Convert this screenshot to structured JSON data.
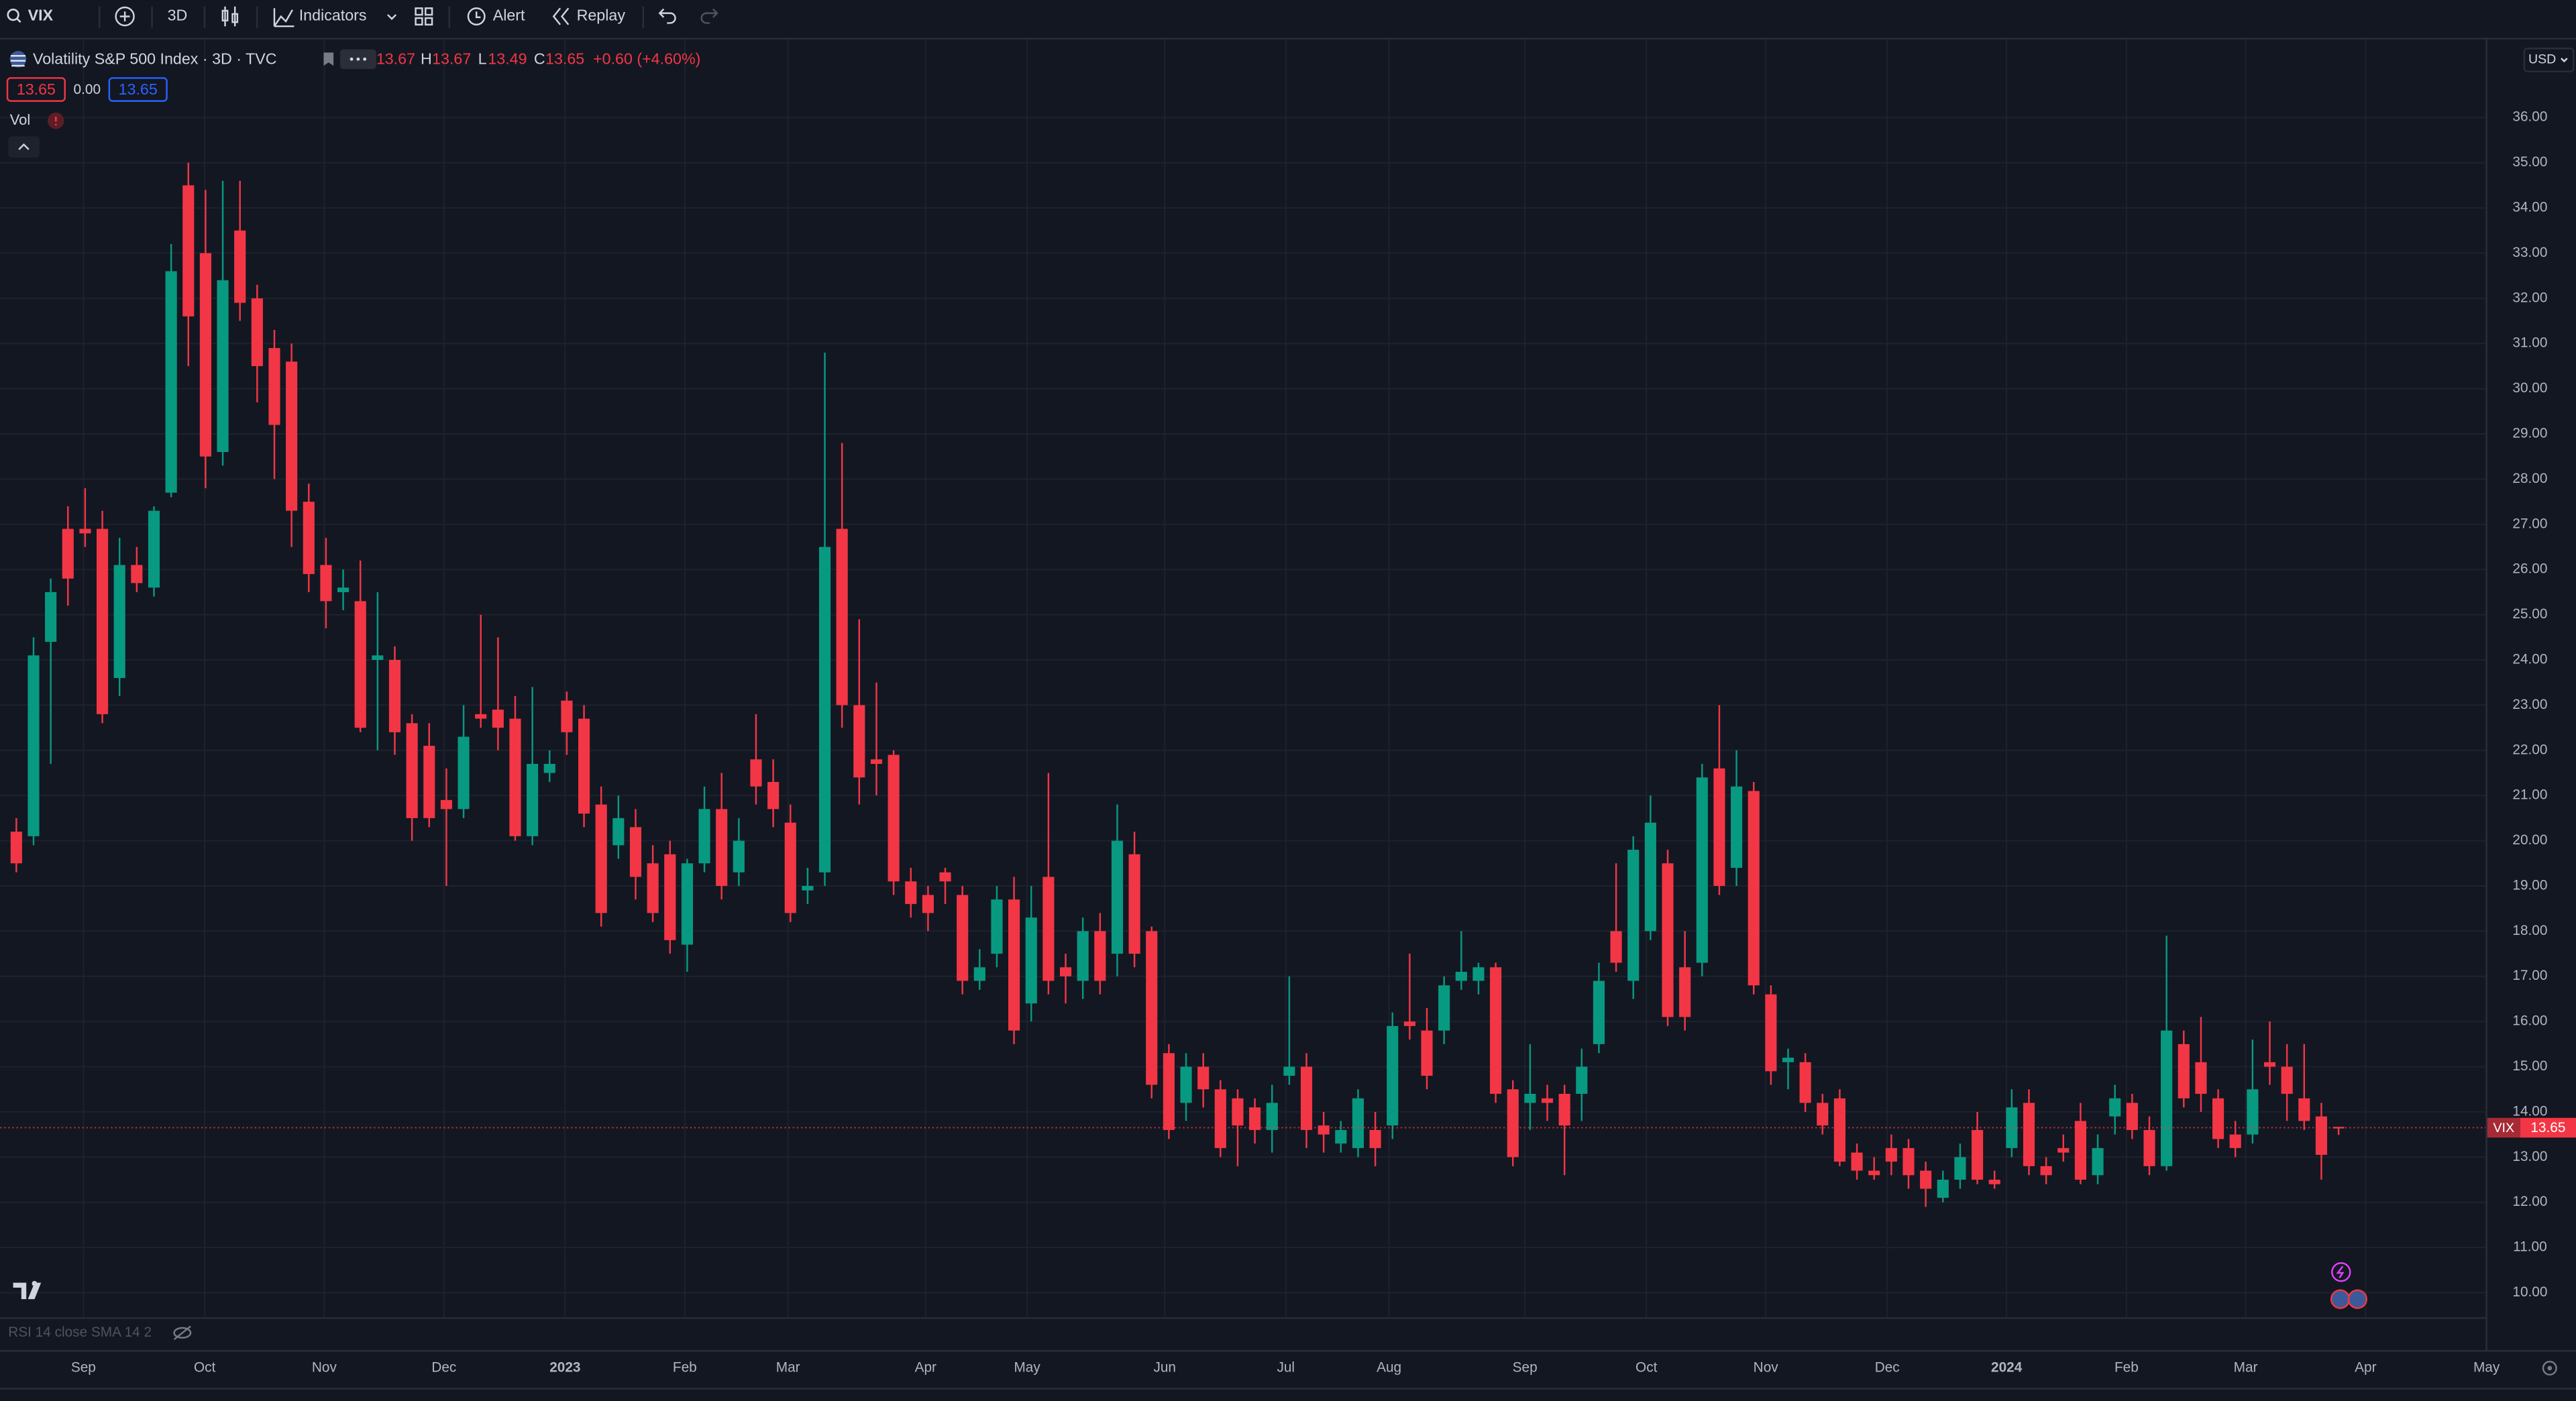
{
  "toolbar": {
    "symbol": "VIX",
    "interval": "3D",
    "indicators": "Indicators",
    "alert": "Alert",
    "replay": "Replay"
  },
  "legend": {
    "title": "Volatility S&P 500 Index · 3D · TVC",
    "open": "13.67",
    "high_label": "H",
    "high": "13.67",
    "low_label": "L",
    "low": "13.49",
    "close_label": "C",
    "close": "13.65",
    "change": "+0.60 (+4.60%)",
    "bid": "13.65",
    "spread": "0.00",
    "ask": "13.65",
    "volume": "Vol"
  },
  "currency": "USD",
  "indicator_pane": "RSI 14 close SMA 14 2",
  "chart_data": {
    "type": "candlestick",
    "up_color": "#089981",
    "down_color": "#f23645",
    "last_symbol": "VIX",
    "last_price": 13.65,
    "grid": true,
    "xlim": [
      -0.95,
      143.55
    ],
    "ylim": [
      9.53,
      36.42
    ],
    "xticks": [
      {
        "value": 3.9,
        "label": "Sep"
      },
      {
        "value": 10.95,
        "label": "Oct"
      },
      {
        "value": 17.9,
        "label": "Nov"
      },
      {
        "value": 24.86,
        "label": "Dec"
      },
      {
        "value": 31.9,
        "label": "2023"
      },
      {
        "value": 38.86,
        "label": "Feb"
      },
      {
        "value": 44.86,
        "label": "Mar"
      },
      {
        "value": 52.86,
        "label": "Apr"
      },
      {
        "value": 58.76,
        "label": "May"
      },
      {
        "value": 66.76,
        "label": "Jun"
      },
      {
        "value": 73.8,
        "label": "Jul"
      },
      {
        "value": 79.8,
        "label": "Aug"
      },
      {
        "value": 87.7,
        "label": "Sep"
      },
      {
        "value": 94.76,
        "label": "Oct"
      },
      {
        "value": 101.7,
        "label": "Nov"
      },
      {
        "value": 108.76,
        "label": "Dec"
      },
      {
        "value": 115.7,
        "label": "2024"
      },
      {
        "value": 122.67,
        "label": "Feb"
      },
      {
        "value": 129.6,
        "label": "Mar"
      },
      {
        "value": 136.57,
        "label": "Apr"
      },
      {
        "value": 143.6,
        "label": "May"
      }
    ],
    "yticks": [
      {
        "value": 10,
        "label": "10.00"
      },
      {
        "value": 11,
        "label": "11.00"
      },
      {
        "value": 12,
        "label": "12.00"
      },
      {
        "value": 13,
        "label": "13.00"
      },
      {
        "value": 14,
        "label": "14.00"
      },
      {
        "value": 15,
        "label": "15.00"
      },
      {
        "value": 16,
        "label": "16.00"
      },
      {
        "value": 17,
        "label": "17.00"
      },
      {
        "value": 18,
        "label": "18.00"
      },
      {
        "value": 19,
        "label": "19.00"
      },
      {
        "value": 20,
        "label": "20.00"
      },
      {
        "value": 21,
        "label": "21.00"
      },
      {
        "value": 22,
        "label": "22.00"
      },
      {
        "value": 23,
        "label": "23.00"
      },
      {
        "value": 24,
        "label": "24.00"
      },
      {
        "value": 25,
        "label": "25.00"
      },
      {
        "value": 26,
        "label": "26.00"
      },
      {
        "value": 27,
        "label": "27.00"
      },
      {
        "value": 28,
        "label": "28.00"
      },
      {
        "value": 29,
        "label": "29.00"
      },
      {
        "value": 30,
        "label": "30.00"
      },
      {
        "value": 31,
        "label": "31.00"
      },
      {
        "value": 32,
        "label": "32.00"
      },
      {
        "value": 33,
        "label": "33.00"
      },
      {
        "value": 34,
        "label": "34.00"
      },
      {
        "value": 35,
        "label": "35.00"
      },
      {
        "value": 36,
        "label": "36.00"
      }
    ],
    "open": [
      20.2,
      20.1,
      24.4,
      26.9,
      26.9,
      26.9,
      23.6,
      26.1,
      25.6,
      27.7,
      34.5,
      33.0,
      28.6,
      33.5,
      32.0,
      30.9,
      30.6,
      27.5,
      26.1,
      25.5,
      25.3,
      24.0,
      24.0,
      22.6,
      22.1,
      20.9,
      20.7,
      22.8,
      22.9,
      22.7,
      20.1,
      21.5,
      23.1,
      22.7,
      20.8,
      19.9,
      20.3,
      19.5,
      19.7,
      17.7,
      19.5,
      20.7,
      19.3,
      21.8,
      21.3,
      20.4,
      18.9,
      19.3,
      26.9,
      23.0,
      21.8,
      21.9,
      19.1,
      18.8,
      19.3,
      18.8,
      16.9,
      17.5,
      18.7,
      16.4,
      19.2,
      17.2,
      16.9,
      18.0,
      17.5,
      19.7,
      18.0,
      15.3,
      14.2,
      15.0,
      14.5,
      14.3,
      14.1,
      13.6,
      14.8,
      15.0,
      13.7,
      13.3,
      13.2,
      13.6,
      13.7,
      16.0,
      15.8,
      15.8,
      16.9,
      16.9,
      17.2,
      14.5,
      14.2,
      14.3,
      14.4,
      14.4,
      15.5,
      18.0,
      16.9,
      18.0,
      19.5,
      17.2,
      17.3,
      21.6,
      19.4,
      21.1,
      16.6,
      15.1,
      15.1,
      14.2,
      14.3,
      13.1,
      12.7,
      13.2,
      13.2,
      12.7,
      12.1,
      12.5,
      13.6,
      12.5,
      13.2,
      14.2,
      12.8,
      13.2,
      13.8,
      12.6,
      13.9,
      14.2,
      13.6,
      12.8,
      15.5,
      15.1,
      14.3,
      13.5,
      13.5,
      15.1,
      15.0,
      14.3,
      13.9,
      13.67
    ],
    "high": [
      20.5,
      24.5,
      25.8,
      27.4,
      27.8,
      27.3,
      26.7,
      26.5,
      27.4,
      33.2,
      35.0,
      34.4,
      34.6,
      34.6,
      32.3,
      31.3,
      31.0,
      27.9,
      26.7,
      26.0,
      26.2,
      25.5,
      24.3,
      22.8,
      22.6,
      21.6,
      23.0,
      25.0,
      24.5,
      23.2,
      23.4,
      22.0,
      23.3,
      23.0,
      21.2,
      21.0,
      20.7,
      19.9,
      20.0,
      19.6,
      21.2,
      21.5,
      20.5,
      22.8,
      21.8,
      20.8,
      19.4,
      30.8,
      28.8,
      24.9,
      23.5,
      22.0,
      19.4,
      19.0,
      19.4,
      19.0,
      17.6,
      19.0,
      19.2,
      19.0,
      21.5,
      17.5,
      18.3,
      18.4,
      20.8,
      20.2,
      18.1,
      15.5,
      15.3,
      15.3,
      14.7,
      14.5,
      14.3,
      14.6,
      17.0,
      15.3,
      14.0,
      13.8,
      14.5,
      14.0,
      16.2,
      17.5,
      16.3,
      17.0,
      18.0,
      17.3,
      17.3,
      14.7,
      15.5,
      14.6,
      14.6,
      15.4,
      17.3,
      19.5,
      20.1,
      21.0,
      19.8,
      18.0,
      21.7,
      23.0,
      22.0,
      21.3,
      16.8,
      15.4,
      15.3,
      14.4,
      14.5,
      13.3,
      13.0,
      13.5,
      13.4,
      12.9,
      12.7,
      13.3,
      14.0,
      12.7,
      14.5,
      14.5,
      13.0,
      13.5,
      14.2,
      13.5,
      14.6,
      14.4,
      13.9,
      17.9,
      15.8,
      16.1,
      14.5,
      13.8,
      15.6,
      16.0,
      15.5,
      15.5,
      14.2,
      13.67
    ],
    "low": [
      19.3,
      19.9,
      21.7,
      25.2,
      26.5,
      22.6,
      23.2,
      25.5,
      25.4,
      27.6,
      30.5,
      27.8,
      28.3,
      31.5,
      29.7,
      28.0,
      26.5,
      25.5,
      24.7,
      25.1,
      22.4,
      22.0,
      21.9,
      20.0,
      20.3,
      19.0,
      20.5,
      22.5,
      22.0,
      20.0,
      19.9,
      21.3,
      21.9,
      20.3,
      18.1,
      19.6,
      18.7,
      18.2,
      17.5,
      17.1,
      19.3,
      18.7,
      19.0,
      20.8,
      20.3,
      18.2,
      18.6,
      19.0,
      22.5,
      20.8,
      21.0,
      18.8,
      18.3,
      18.0,
      18.6,
      16.6,
      16.7,
      17.2,
      15.5,
      16.0,
      16.6,
      16.4,
      16.5,
      16.6,
      17.0,
      17.2,
      14.3,
      13.4,
      13.8,
      14.1,
      13.0,
      12.8,
      13.3,
      13.1,
      14.6,
      13.2,
      13.1,
      13.1,
      13.0,
      12.8,
      13.4,
      15.6,
      14.5,
      15.5,
      16.7,
      16.6,
      14.2,
      12.8,
      13.6,
      13.8,
      12.6,
      13.8,
      15.3,
      17.1,
      16.5,
      17.8,
      15.9,
      15.8,
      17.0,
      18.8,
      19.0,
      16.6,
      14.6,
      14.5,
      14.0,
      13.5,
      12.8,
      12.5,
      12.5,
      12.6,
      12.3,
      11.9,
      12.0,
      12.3,
      12.4,
      12.3,
      13.0,
      12.6,
      12.4,
      12.9,
      12.4,
      12.4,
      13.5,
      13.4,
      12.6,
      12.7,
      14.1,
      14.0,
      13.2,
      13.0,
      13.3,
      14.6,
      13.8,
      13.6,
      12.5,
      13.49
    ],
    "close": [
      19.5,
      24.1,
      25.5,
      25.8,
      26.8,
      22.8,
      26.1,
      25.7,
      27.3,
      32.6,
      31.6,
      28.5,
      32.4,
      31.9,
      30.5,
      29.2,
      27.3,
      25.9,
      25.3,
      25.6,
      22.5,
      24.1,
      22.4,
      20.5,
      20.5,
      20.7,
      22.3,
      22.7,
      22.5,
      20.1,
      21.7,
      21.7,
      22.4,
      20.6,
      18.4,
      20.5,
      19.2,
      18.4,
      17.8,
      19.5,
      20.7,
      19.0,
      20.0,
      21.2,
      20.7,
      18.4,
      19.0,
      26.5,
      23.0,
      21.4,
      21.7,
      19.1,
      18.6,
      18.4,
      19.1,
      16.9,
      17.2,
      18.7,
      15.8,
      18.3,
      16.9,
      17.0,
      18.0,
      16.9,
      20.0,
      17.5,
      14.6,
      13.6,
      15.0,
      14.5,
      13.2,
      13.7,
      13.6,
      14.2,
      15.0,
      13.6,
      13.5,
      13.6,
      14.3,
      13.2,
      15.9,
      15.9,
      14.8,
      16.8,
      17.1,
      17.2,
      14.4,
      13.0,
      14.4,
      14.2,
      13.7,
      15.0,
      16.9,
      17.3,
      19.8,
      20.4,
      16.1,
      16.1,
      21.4,
      19.0,
      21.2,
      16.8,
      14.9,
      15.2,
      14.2,
      13.7,
      12.9,
      12.7,
      12.6,
      12.9,
      12.6,
      12.3,
      12.5,
      13.0,
      12.5,
      12.4,
      14.1,
      12.8,
      12.6,
      13.1,
      12.5,
      13.2,
      14.3,
      13.6,
      12.8,
      15.8,
      14.3,
      14.4,
      13.4,
      13.2,
      14.5,
      15.0,
      14.4,
      13.8,
      13.05,
      13.65
    ]
  }
}
